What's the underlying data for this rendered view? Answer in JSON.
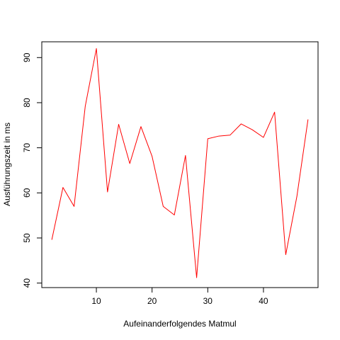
{
  "chart_data": {
    "type": "line",
    "title": "",
    "xlabel": "Aufeinanderfolgendes Matmul",
    "ylabel": "Ausführungszeit in ms",
    "xlim": [
      0.2,
      49.8
    ],
    "ylim": [
      39,
      93.5
    ],
    "x_ticks": [
      10,
      20,
      30,
      40
    ],
    "y_ticks": [
      40,
      50,
      60,
      70,
      80,
      90
    ],
    "grid": false,
    "legend": "none",
    "series": [
      {
        "color": "#ff0000",
        "x": [
          2,
          4,
          6,
          8,
          10,
          12,
          14,
          16,
          18,
          20,
          22,
          24,
          26,
          28,
          30,
          32,
          34,
          36,
          38,
          40,
          42,
          44,
          46,
          48
        ],
        "y": [
          49.6,
          61.2,
          57.0,
          79.2,
          92.0,
          60.2,
          75.2,
          66.5,
          74.7,
          68.1,
          57.0,
          55.1,
          68.3,
          41.2,
          72.0,
          72.6,
          72.8,
          75.3,
          74.0,
          72.3,
          77.9,
          46.3,
          59.2,
          76.3
        ]
      }
    ]
  }
}
